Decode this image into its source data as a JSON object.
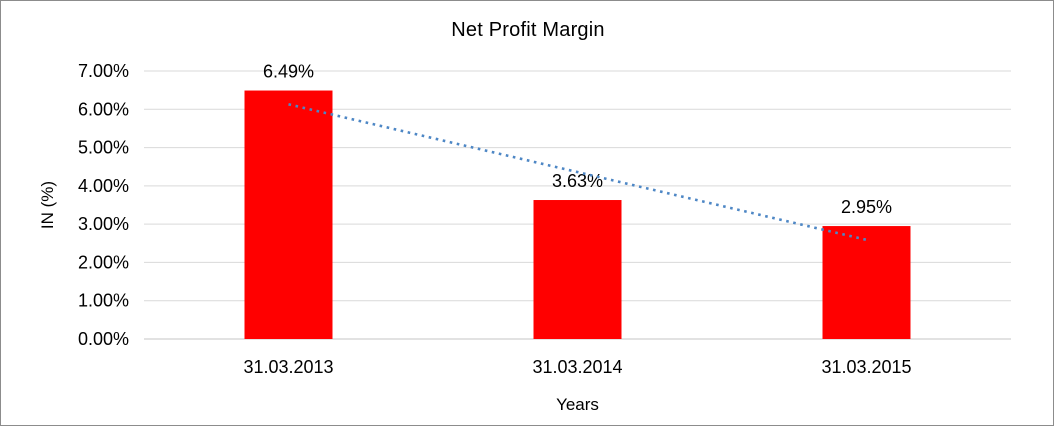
{
  "window": {
    "background_color": "#FFFFFF",
    "frame_border_color": "#8C8C8C"
  },
  "chart_data": {
    "type": "bar",
    "title": "Net Profit Margin",
    "xlabel": "Years",
    "ylabel": "IN (%)",
    "categories": [
      "31.03.2013",
      "31.03.2014",
      "31.03.2015"
    ],
    "values": [
      6.49,
      3.63,
      2.95
    ],
    "value_labels": [
      "6.49%",
      "3.63%",
      "2.95%"
    ],
    "ylim": [
      0,
      7
    ],
    "ytick_step": 1,
    "ytick_labels": [
      "0.00%",
      "1.00%",
      "2.00%",
      "3.00%",
      "4.00%",
      "5.00%",
      "6.00%",
      "7.00%"
    ],
    "grid": true,
    "legend": false,
    "bar_color": "#FF0000",
    "gridline_color": "#D9D9D9",
    "axis_line_color": "#C6C6C6",
    "text_color": "#000000",
    "trendline": {
      "type": "linear",
      "style": "dotted",
      "color": "#4E87C5",
      "endpoints_pct": [
        6.13,
        2.59
      ]
    }
  }
}
